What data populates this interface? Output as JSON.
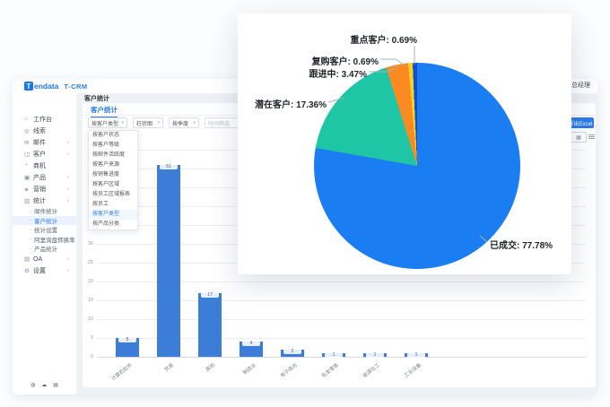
{
  "brand": {
    "logo_letter": "T",
    "logo_name": "endata",
    "product": "T-CRM",
    "accent": "#1677f0"
  },
  "topbar": {
    "page_title": "客户统计",
    "divider": "|",
    "user_role": "总经理"
  },
  "sidebar": {
    "items": [
      {
        "key": "workbench",
        "label": "工作台",
        "icon": "workbench-icon",
        "glyph": "⌂",
        "arrow": false
      },
      {
        "key": "leads",
        "label": "线索",
        "icon": "leads-icon",
        "glyph": "◎",
        "arrow": false
      },
      {
        "key": "mail",
        "label": "邮件",
        "icon": "mail-icon",
        "glyph": "✉",
        "arrow": true
      },
      {
        "key": "customer",
        "label": "客户",
        "icon": "customer-icon",
        "glyph": "◫",
        "arrow": true
      },
      {
        "key": "opportunity",
        "label": "商机",
        "icon": "opportunity-icon",
        "glyph": "◔",
        "arrow": false
      },
      {
        "key": "product",
        "label": "产品",
        "icon": "product-icon",
        "glyph": "▣",
        "arrow": true
      },
      {
        "key": "marketing",
        "label": "营销",
        "icon": "marketing-icon",
        "glyph": "◈",
        "arrow": true
      },
      {
        "key": "statistics",
        "label": "统计",
        "icon": "statistics-icon",
        "glyph": "▥",
        "arrow": true
      }
    ],
    "sub_items": [
      {
        "key": "mail-stats",
        "label": "邮件统计",
        "active": false
      },
      {
        "key": "customer-stats",
        "label": "客户统计",
        "active": true
      },
      {
        "key": "stats-settings",
        "label": "统计设置",
        "active": false
      },
      {
        "key": "ali-inquiry-rate",
        "label": "阿里询盘转换率",
        "active": false
      },
      {
        "key": "product-stats",
        "label": "产品统计",
        "active": false
      }
    ],
    "tail_items": [
      {
        "key": "oa",
        "label": "OA",
        "icon": "oa-icon",
        "glyph": "▤",
        "arrow": true
      },
      {
        "key": "settings",
        "label": "设置",
        "icon": "settings-icon",
        "glyph": "⚙",
        "arrow": true
      }
    ]
  },
  "tabs": [
    {
      "label": "客户统计",
      "active": true
    }
  ],
  "filters": {
    "group_by": "按客户类型",
    "chart_type": "柱状图",
    "period": "按季度",
    "date_placeholder": "时间筛选",
    "export_label": "导出Excel"
  },
  "dropdown": {
    "items": [
      "按客户状态",
      "按客户等级",
      "按邮件活跃度",
      "按客户来源",
      "按销售进度",
      "按客户区域",
      "按员工区域报表",
      "按员工",
      "按客户类型",
      "按产品分类"
    ],
    "selected": "按客户类型"
  },
  "icons": {
    "caret_down": "▾",
    "chevron": "∨",
    "calendar": "▦",
    "grid_view": "▦",
    "support": "◍",
    "cloud": "☁",
    "apps": "▤",
    "dot": "·"
  },
  "chart_data": [
    {
      "type": "bar",
      "categories": [
        "计算机软件",
        "贸易",
        "其他",
        "制造业",
        "电子商务",
        "批发零售",
        "能源化工",
        "工业设备"
      ],
      "values": [
        5,
        51,
        17,
        4,
        2,
        1,
        1,
        1
      ],
      "ylim": [
        0,
        55
      ],
      "ytick_step": 5,
      "grid": true,
      "bar_color": "#3c7dd8",
      "xlabel": "",
      "ylabel": "",
      "legend": false
    },
    {
      "type": "pie",
      "slices": [
        {
          "name": "已成交",
          "value": 77.78,
          "color": "#1a7df2"
        },
        {
          "name": "潜在客户",
          "value": 17.36,
          "color": "#1ec6a5"
        },
        {
          "name": "跟进中",
          "value": 3.47,
          "color": "#fb8a20"
        },
        {
          "name": "复购客户",
          "value": 0.69,
          "color": "#f6d41d"
        },
        {
          "name": "重点客户",
          "value": 0.69,
          "color": "#0b4fd6"
        }
      ],
      "label_format": "{name}: {value}%",
      "start_angle": "top",
      "direction": "clockwise",
      "legend": false
    }
  ],
  "colors": {
    "accent": "#2b7cea",
    "bar": "#3c7dd8",
    "main_bg": "#eef1f5",
    "active_item_bg": "#e9f2fe"
  }
}
